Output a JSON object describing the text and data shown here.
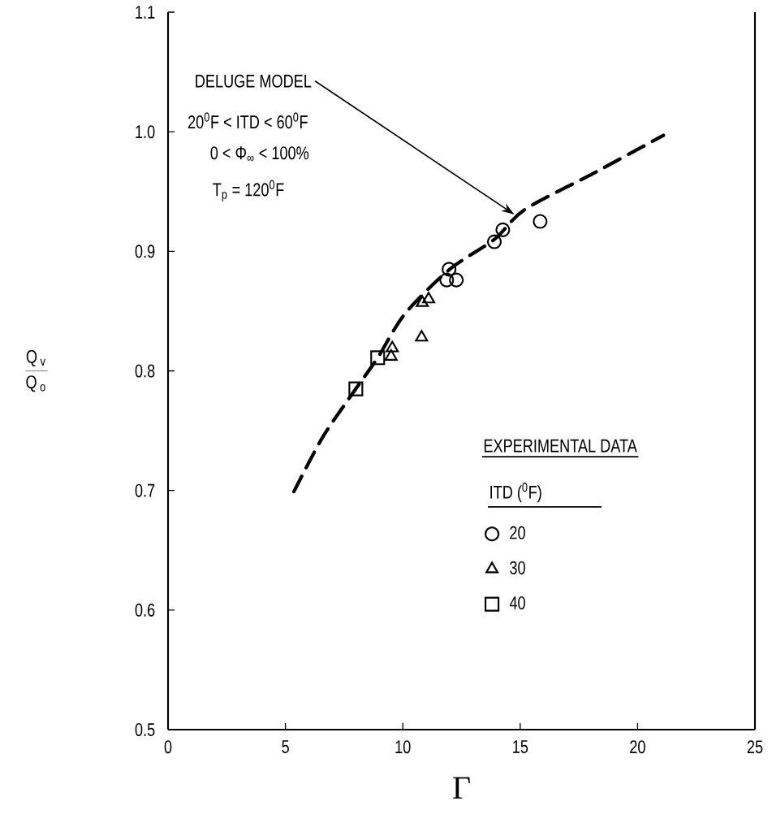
{
  "chart_data": {
    "type": "scatter",
    "xlabel": "Γ",
    "legend_title": "EXPERIMENTAL DATA",
    "legend": "bottom right",
    "xlim": [
      0,
      25
    ],
    "ylim": [
      0.5,
      1.1
    ],
    "xticks": [
      0,
      5,
      10,
      15,
      20,
      25
    ],
    "yticks": [
      0.5,
      0.6,
      0.7,
      0.8,
      0.9,
      {
        "value": 1.0,
        "label": "1.0"
      },
      1.1
    ],
    "annotations": [
      "DELUGE MODEL",
      "20$^{0}$F < ITD < 60$^{0}$F",
      "0 < Φ$_{∞}$ < 100%",
      "T$_{p}$ = 120$^{0}$F",
      "ITD ($^{0}$F)",
      "\\frac{\\mathrm{Q}_{\\mathrm{v}}}{\\mathrm{Q}_{\\mathrm{o}}}"
    ],
    "series": [
      {
        "type": "line",
        "color": "#000000",
        "line_style": "dashed",
        "marker": "none",
        "x": [
          5.36,
          6.6,
          8.0,
          8.93,
          10.1,
          12.0,
          13.9,
          15.2,
          18.1,
          21.1
        ],
        "values": [
          0.699,
          0.745,
          0.785,
          0.811,
          0.848,
          0.885,
          0.91,
          0.935,
          0.965,
          0.997
        ]
      },
      {
        "name": "20",
        "color": "#000000",
        "marker": "circle",
        "x": [
          15.85,
          14.26,
          13.9,
          11.87,
          12.28,
          11.97
        ],
        "values": [
          0.925,
          0.918,
          0.908,
          0.876,
          0.876,
          0.885
        ]
      },
      {
        "name": "30",
        "color": "#000000",
        "marker": "triangle",
        "x": [
          10.83,
          11.1,
          10.8,
          9.55,
          9.5
        ],
        "values": [
          0.857,
          0.86,
          0.828,
          0.819,
          0.812
        ]
      },
      {
        "name": "40",
        "color": "#000000",
        "marker": "square",
        "x": [
          8.93,
          8.0
        ],
        "values": [
          0.811,
          0.785
        ]
      }
    ]
  }
}
